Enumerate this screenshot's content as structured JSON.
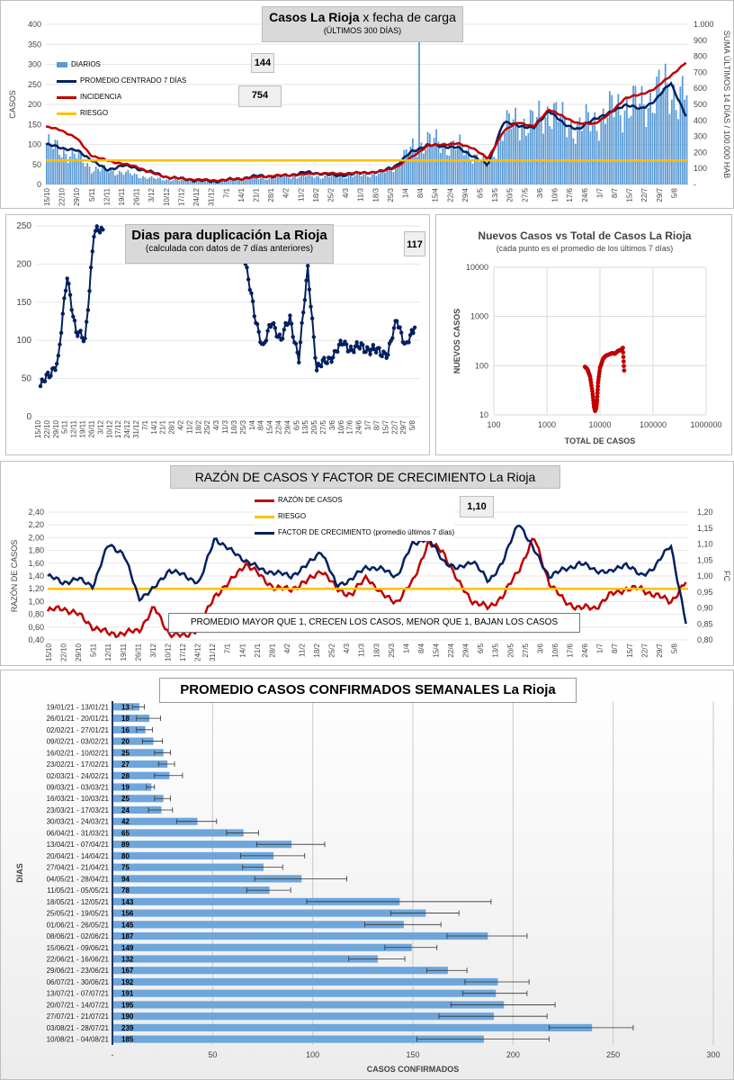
{
  "panel1": {
    "title_bold": "Casos La Rioja",
    "title_rest": " x fecha de carga",
    "subtitle": "(ÚLTIMOS 300 DÍAS)",
    "ylabel_left": "CASOS",
    "ylabel_right": "SUMA ÚLTIMOS 14 DÍAS / 100.000 HAB",
    "callout1": "144",
    "callout2": "754",
    "legend": [
      "DIARIOS",
      "PROMEDIO CENTRADO 7 DÍAS",
      "INCIDENCIA",
      "RIESGO"
    ],
    "colors": {
      "bars": "#5b9bd5",
      "avg": "#002060",
      "incidence": "#c00000",
      "risk": "#ffc000"
    }
  },
  "panel2": {
    "title": "Dias para duplicación La Rioja",
    "subtitle": "(calculada con datos de 7 días anteriores)",
    "callout": "117",
    "color": "#002060"
  },
  "panel3": {
    "title": "Nuevos Casos vs Total de Casos La Rioja",
    "subtitle": "(cada punto es el promedio de los últimos 7 días)",
    "xlabel": "TOTAL DE CASOS",
    "ylabel": "NUEVOS CASOS",
    "color": "#c00000"
  },
  "panel4": {
    "title": "RAZÓN DE CASOS Y FACTOR DE CRECIMIENTO La Rioja",
    "ylabel_left": "RAZÓN DE CASOS",
    "ylabel_right": "FC",
    "callout": "1,10",
    "legend": [
      "RAZÓN DE CASOS",
      "RIESGO",
      "FACTOR DE CRECIMIENTO (promedio últimos 7 días)"
    ],
    "note": "PROMEDIO MAYOR QUE 1, CRECEN LOS CASOS, MENOR QUE 1, BAJAN LOS CASOS"
  },
  "panel5": {
    "title": "PROMEDIO CASOS CONFIRMADOS SEMANALES La Rioja",
    "xlabel": "CASOS CONFIRMADOS",
    "ylabel": "DIAS"
  },
  "chart_data": [
    {
      "type": "bar+line",
      "title": "Casos La Rioja x fecha de carga",
      "subtitle": "(ÚLTIMOS 300 DÍAS)",
      "ylabel": "CASOS",
      "ylabel_right": "SUMA ÚLTIMOS 14 DÍAS / 100.000 HAB",
      "ylim": [
        0,
        400
      ],
      "ylim_right": [
        0,
        1000
      ],
      "yticks": [
        0,
        50,
        100,
        150,
        200,
        250,
        300,
        350,
        400
      ],
      "yticks_right": [
        "-",
        "100",
        "200",
        "300",
        "400",
        "500",
        "600",
        "700",
        "800",
        "900",
        "1.000"
      ],
      "x_ticks": [
        "15/10",
        "22/10",
        "29/10",
        "5/11",
        "12/11",
        "19/11",
        "26/11",
        "3/12",
        "10/12",
        "17/12",
        "24/12",
        "31/12",
        "7/1",
        "14/1",
        "21/1",
        "28/1",
        "4/2",
        "11/2",
        "18/2",
        "25/2",
        "4/3",
        "11/3",
        "18/3",
        "25/3",
        "1/4",
        "8/4",
        "15/4",
        "22/4",
        "29/4",
        "6/5",
        "13/5",
        "20/5",
        "27/5",
        "3/6",
        "10/6",
        "17/6",
        "24/6",
        "1/7",
        "8/7",
        "15/7",
        "22/7",
        "29/7",
        "5/8"
      ],
      "series": [
        {
          "name": "DIARIOS",
          "kind": "bar",
          "weekly_level": [
            100,
            85,
            70,
            40,
            35,
            30,
            22,
            15,
            12,
            10,
            8,
            10,
            12,
            15,
            15,
            18,
            20,
            22,
            20,
            20,
            22,
            25,
            28,
            50,
            90,
            110,
            100,
            95,
            75,
            50,
            140,
            160,
            150,
            190,
            150,
            145,
            160,
            180,
            200,
            195,
            230,
            235,
            220
          ]
        },
        {
          "name": "PROMEDIO CENTRADO 7 DÍAS",
          "kind": "line",
          "points": [
            100,
            92,
            85,
            62,
            35,
            48,
            40,
            30,
            18,
            14,
            10,
            8,
            12,
            16,
            22,
            20,
            24,
            30,
            28,
            22,
            26,
            30,
            32,
            48,
            82,
            98,
            96,
            92,
            72,
            48,
            155,
            148,
            140,
            185,
            150,
            138,
            165,
            178,
            200,
            188,
            210,
            255,
            170
          ]
        },
        {
          "name": "INCIDENCIA",
          "kind": "line",
          "axis": "right",
          "points": [
            360,
            340,
            290,
            180,
            150,
            130,
            110,
            70,
            45,
            35,
            30,
            25,
            30,
            38,
            48,
            55,
            58,
            65,
            70,
            68,
            70,
            75,
            80,
            110,
            170,
            240,
            250,
            255,
            230,
            160,
            330,
            390,
            360,
            470,
            420,
            380,
            380,
            440,
            540,
            560,
            600,
            680,
            760
          ]
        },
        {
          "name": "RIESGO",
          "kind": "line",
          "axis": "right",
          "value": 150
        }
      ]
    },
    {
      "type": "line",
      "title": "Dias para duplicación La Rioja",
      "subtitle": "(calculada con datos de 7 días anteriores)",
      "ylim": [
        0,
        250
      ],
      "yticks": [
        0,
        50,
        100,
        150,
        200,
        250
      ],
      "x_ticks": [
        "15/10",
        "22/10",
        "29/10",
        "5/11",
        "12/11",
        "19/11",
        "26/11",
        "3/12",
        "10/12",
        "17/12",
        "24/12",
        "31/12",
        "7/1",
        "14/1",
        "21/1",
        "28/1",
        "4/2",
        "11/2",
        "18/2",
        "25/2",
        "4/3",
        "11/3",
        "18/3",
        "25/3",
        "1/4",
        "8/4",
        "15/4",
        "22/4",
        "29/4",
        "6/5",
        "13/5",
        "20/5",
        "27/5",
        "3/6",
        "10/6",
        "17/6",
        "24/6",
        "1/7",
        "8/7",
        "15/7",
        "22/7",
        "29/7",
        "5/8"
      ],
      "series": [
        {
          "name": "",
          "x": [
            "15/10",
            "22/10",
            "29/10",
            "5/11",
            "12/11",
            "19/11",
            "26/11",
            "3/12"
          ],
          "values": [
            40,
            55,
            75,
            185,
            110,
            100,
            240,
            245
          ]
        },
        {
          "name": "",
          "x": [
            "25/3",
            "1/4",
            "8/4",
            "15/4",
            "22/4",
            "29/4",
            "6/5",
            "13/5",
            "20/5",
            "27/5",
            "3/6",
            "10/6",
            "17/6",
            "24/6",
            "1/7",
            "8/7",
            "15/7",
            "22/7",
            "29/7",
            "5/8"
          ],
          "values": [
            200,
            135,
            90,
            125,
            100,
            130,
            75,
            195,
            60,
            75,
            80,
            100,
            85,
            95,
            85,
            88,
            80,
            130,
            90,
            117
          ]
        }
      ]
    },
    {
      "type": "scatter",
      "title": "Nuevos Casos vs Total de Casos La Rioja",
      "subtitle": "(cada punto es el promedio de los últimos 7 días)",
      "xlabel": "TOTAL DE CASOS",
      "ylabel": "NUEVOS CASOS",
      "x_scale": "log",
      "y_scale": "log",
      "xlim": [
        100,
        1000000
      ],
      "ylim": [
        10,
        10000
      ],
      "xticks": [
        100,
        1000,
        10000,
        100000,
        1000000
      ],
      "yticks": [
        10,
        100,
        1000,
        10000
      ],
      "series": [
        {
          "name": "",
          "x": [
            5200,
            5800,
            6500,
            7200,
            7700,
            8100,
            8500,
            8800,
            9200,
            10000,
            11500,
            13000,
            15000,
            17000,
            19000,
            22000,
            25000,
            27000,
            28500
          ],
          "y": [
            95,
            85,
            60,
            30,
            15,
            12,
            14,
            20,
            45,
            90,
            140,
            160,
            170,
            180,
            175,
            200,
            210,
            230,
            80
          ]
        }
      ]
    },
    {
      "type": "line",
      "title": "RAZÓN DE CASOS Y FACTOR DE CRECIMIENTO La Rioja",
      "ylabel": "RAZÓN DE CASOS",
      "ylabel_right": "FC",
      "ylim": [
        0.4,
        2.4
      ],
      "ylim_right": [
        0.8,
        1.2
      ],
      "yticks": [
        "0,40",
        "0,60",
        "0,80",
        "1,00",
        "1,20",
        "1,40",
        "1,60",
        "1,80",
        "2,00",
        "2,20",
        "2,40"
      ],
      "yticks_right": [
        "0,80",
        "0,85",
        "0,90",
        "0,95",
        "1,00",
        "1,05",
        "1,10",
        "1,15",
        "1,20"
      ],
      "x_ticks": [
        "15/10",
        "22/10",
        "29/10",
        "5/11",
        "12/11",
        "19/11",
        "26/11",
        "3/12",
        "10/12",
        "17/12",
        "24/12",
        "31/12",
        "7/1",
        "14/1",
        "21/1",
        "28/1",
        "4/2",
        "11/2",
        "18/2",
        "25/2",
        "4/3",
        "11/3",
        "18/3",
        "25/3",
        "1/4",
        "8/4",
        "15/4",
        "22/4",
        "29/4",
        "6/5",
        "13/5",
        "20/5",
        "27/5",
        "3/6",
        "10/6",
        "17/6",
        "24/6",
        "1/7",
        "8/7",
        "15/7",
        "22/7",
        "29/7",
        "5/8"
      ],
      "series": [
        {
          "name": "RAZÓN DE CASOS",
          "values": [
            0.85,
            0.9,
            0.8,
            0.6,
            0.5,
            0.5,
            0.55,
            0.9,
            0.5,
            0.45,
            0.6,
            1.1,
            1.3,
            1.6,
            1.4,
            1.2,
            1.2,
            1.3,
            1.5,
            1.2,
            1.1,
            1.4,
            1.1,
            1.0,
            1.3,
            1.9,
            1.8,
            1.3,
            1.0,
            0.9,
            1.1,
            1.5,
            2.0,
            1.3,
            1.0,
            0.9,
            0.9,
            1.1,
            1.2,
            1.2,
            1.1,
            1.0,
            1.3
          ]
        },
        {
          "name": "RIESGO",
          "value": 1.2
        },
        {
          "name": "FACTOR DE CRECIMIENTO (promedio últimos 7 días)",
          "axis": "right",
          "values": [
            1.0,
            0.98,
            0.99,
            0.97,
            1.1,
            1.07,
            0.93,
            0.96,
            1.02,
            1.0,
            0.98,
            1.12,
            1.08,
            1.05,
            1.02,
            1.01,
            1.0,
            1.03,
            1.08,
            0.97,
            0.99,
            1.03,
            1.02,
            1.0,
            1.1,
            1.12,
            1.05,
            1.02,
            1.05,
            0.98,
            1.05,
            1.17,
            1.08,
            1.0,
            1.02,
            1.04,
            1.02,
            1.01,
            1.04,
            1.0,
            1.03,
            1.1,
            0.85
          ]
        }
      ]
    },
    {
      "type": "bar",
      "orientation": "horizontal",
      "title": "PROMEDIO CASOS CONFIRMADOS SEMANALES La Rioja",
      "xlabel": "CASOS CONFIRMADOS",
      "ylabel": "DIAS",
      "xlim": [
        0,
        300
      ],
      "xticks": [
        "-",
        "50",
        "100",
        "150",
        "200",
        "250",
        "300"
      ],
      "categories": [
        "19/01/21 - 13/01/21",
        "26/01/21 - 20/01/21",
        "02/02/21 - 27/01/21",
        "09/02/21 - 03/02/21",
        "16/02/21 - 10/02/21",
        "23/02/21 - 17/02/21",
        "02/03/21 - 24/02/21",
        "09/03/21 - 03/03/21",
        "16/03/21 - 10/03/21",
        "23/03/21 - 17/03/21",
        "30/03/21 - 24/03/21",
        "06/04/21 - 31/03/21",
        "13/04/21 - 07/04/21",
        "20/04/21 - 14/04/21",
        "27/04/21 - 21/04/21",
        "04/05/21 - 28/04/21",
        "11/05/21 - 05/05/21",
        "18/05/21 - 12/05/21",
        "25/05/21 - 19/05/21",
        "01/06/21 - 26/05/21",
        "08/06/21 - 02/06/21",
        "15/06/21 - 09/06/21",
        "22/06/21 - 16/06/21",
        "29/06/21 - 23/06/21",
        "06/07/21 - 30/06/21",
        "13/07/21 - 07/07/21",
        "20/07/21 - 14/07/21",
        "27/07/21 - 21/07/21",
        "03/08/21 - 28/07/21",
        "10/08/21 - 04/08/21"
      ],
      "values": [
        13,
        18,
        16,
        20,
        25,
        27,
        28,
        19,
        25,
        24,
        42,
        65,
        89,
        80,
        75,
        94,
        78,
        143,
        156,
        145,
        187,
        149,
        132,
        167,
        192,
        191,
        195,
        190,
        239,
        185
      ],
      "error": [
        3,
        6,
        4,
        5,
        4,
        4,
        7,
        2,
        4,
        6,
        10,
        8,
        17,
        16,
        10,
        23,
        11,
        46,
        17,
        19,
        20,
        13,
        14,
        10,
        16,
        16,
        26,
        27,
        21,
        33
      ]
    }
  ]
}
